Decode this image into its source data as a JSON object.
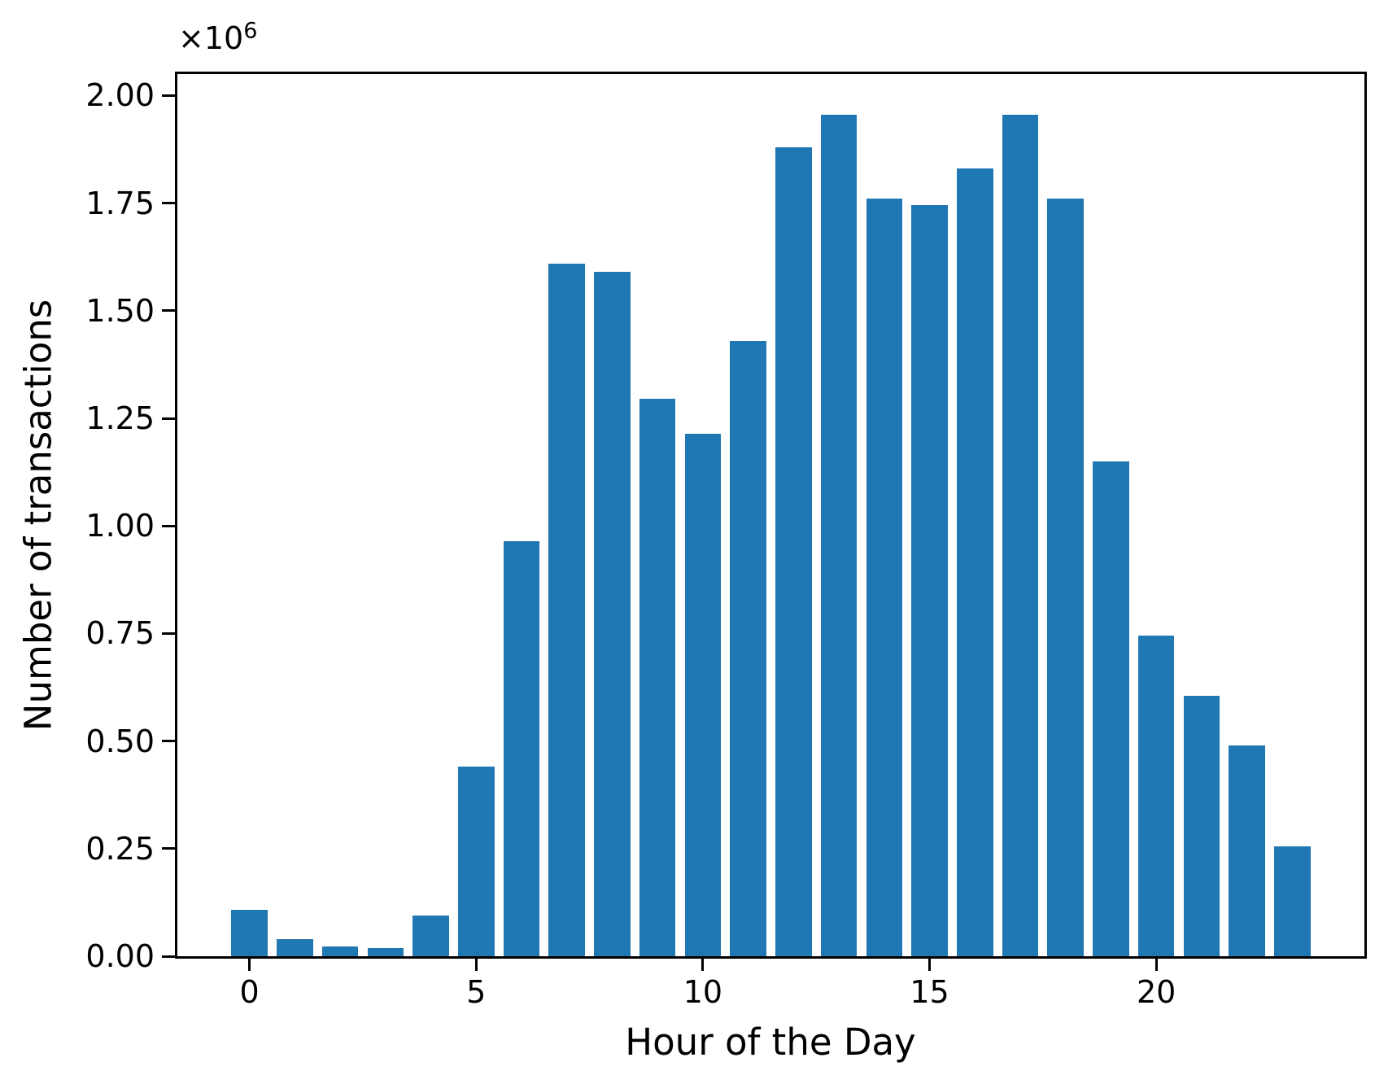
{
  "figure": {
    "background_color": "#ffffff",
    "text_color": "#000000",
    "offset_text": {
      "base": "×10",
      "exponent": "6"
    }
  },
  "chart_data": {
    "type": "bar",
    "title": "",
    "xlabel": "Hour of the Day",
    "ylabel": "Number of transactions",
    "bar_color": "#1f77b4",
    "categories": [
      0,
      1,
      2,
      3,
      4,
      5,
      6,
      7,
      8,
      9,
      10,
      11,
      12,
      13,
      14,
      15,
      16,
      17,
      18,
      19,
      20,
      21,
      22,
      23
    ],
    "values": [
      107000,
      40000,
      23000,
      18000,
      95000,
      440000,
      965000,
      1610000,
      1590000,
      1295000,
      1215000,
      1430000,
      1880000,
      1955000,
      1760000,
      1745000,
      1830000,
      1955000,
      1760000,
      1150000,
      745000,
      605000,
      490000,
      255000
    ],
    "y_multiplier": 1000000,
    "ytick_values": [
      0,
      250000,
      500000,
      750000,
      1000000,
      1250000,
      1500000,
      1750000,
      2000000
    ],
    "ytick_labels": [
      "0.00",
      "0.25",
      "0.50",
      "0.75",
      "1.00",
      "1.25",
      "1.50",
      "1.75",
      "2.00"
    ],
    "xtick_values": [
      0,
      5,
      10,
      15,
      20
    ],
    "xtick_labels": [
      "0",
      "5",
      "10",
      "15",
      "20"
    ],
    "ylim": [
      0,
      2050000
    ],
    "xlim": [
      -1.59,
      24.59
    ],
    "bar_width_units": 0.8,
    "grid": false,
    "legend": null
  }
}
